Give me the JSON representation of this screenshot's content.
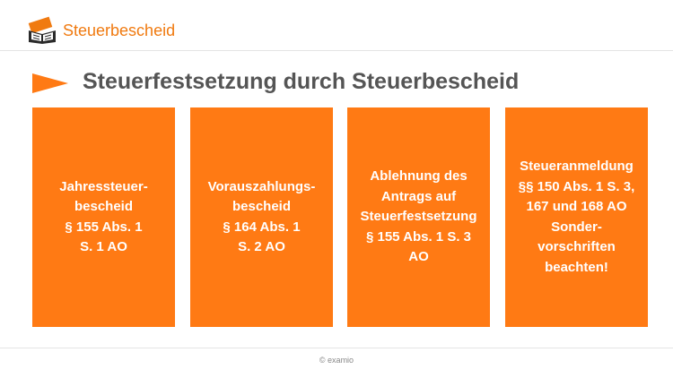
{
  "header": {
    "brand": "Steuerbescheid",
    "logo_icon": "open-book-icon",
    "accent_color": "#f07a10"
  },
  "slide": {
    "title": "Steuerfestsetzung durch Steuerbescheid",
    "bullet_icon": "arrow-right-icon",
    "box_color": "#ff7a14",
    "boxes": [
      {
        "text": "Jahressteuer-\nbescheid\n§ 155 Abs. 1\nS. 1 AO"
      },
      {
        "text": "Vorauszahlungs-\nbescheid\n§ 164 Abs. 1\nS. 2 AO"
      },
      {
        "text": "Ablehnung des\nAntrags auf\nSteuerfestsetzung\n§ 155 Abs. 1 S. 3\nAO"
      },
      {
        "text": "Steueranmeldung\n§§ 150 Abs. 1 S. 3,\n167 und 168 AO\nSonder-\nvorschriften\nbeachten!"
      }
    ]
  },
  "footer": {
    "copyright": "© examio"
  }
}
